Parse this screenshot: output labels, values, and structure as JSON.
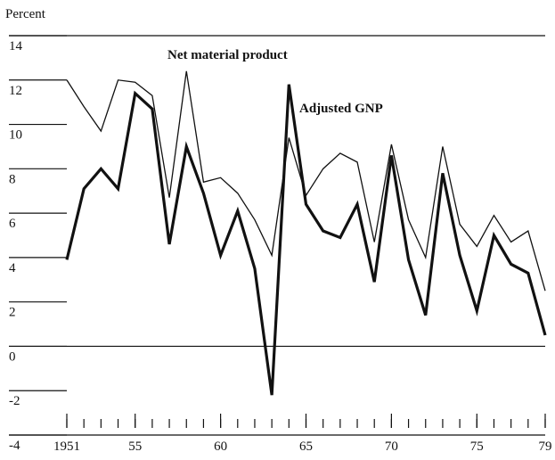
{
  "chart_data": {
    "type": "line",
    "y_label": "Percent",
    "annotations": [
      "Net material product",
      "Adjusted GNP"
    ],
    "x": [
      1951,
      1952,
      1953,
      1954,
      1955,
      1956,
      1957,
      1958,
      1959,
      1960,
      1961,
      1962,
      1963,
      1964,
      1965,
      1966,
      1967,
      1968,
      1969,
      1970,
      1971,
      1972,
      1973,
      1974,
      1975,
      1976,
      1977,
      1978,
      1979
    ],
    "series": [
      {
        "name": "Net material product",
        "color": "#111111",
        "width": 1.3,
        "values": [
          12.0,
          10.8,
          9.7,
          12.0,
          11.9,
          11.3,
          6.7,
          12.4,
          7.4,
          7.6,
          6.9,
          5.7,
          4.1,
          9.4,
          6.8,
          8.0,
          8.7,
          8.3,
          4.7,
          9.1,
          5.7,
          4.0,
          9.0,
          5.5,
          4.5,
          5.9,
          4.7,
          5.2,
          2.5
        ]
      },
      {
        "name": "Adjusted GNP",
        "color": "#111111",
        "width": 3.2,
        "values": [
          3.9,
          7.1,
          8.0,
          7.1,
          11.4,
          10.7,
          4.6,
          9.0,
          6.9,
          4.1,
          6.1,
          3.5,
          -2.2,
          11.8,
          6.4,
          5.2,
          4.9,
          6.4,
          2.9,
          8.6,
          3.9,
          1.4,
          7.8,
          4.1,
          1.6,
          5.0,
          3.7,
          3.3,
          0.5
        ]
      }
    ],
    "xlim": [
      1951,
      1979
    ],
    "xticks": [
      1951,
      {
        "value": 1955,
        "label": "55"
      },
      {
        "value": 1960,
        "label": "60"
      },
      {
        "value": 1965,
        "label": "65"
      },
      {
        "value": 1970,
        "label": "70"
      },
      {
        "value": 1975,
        "label": "75"
      },
      {
        "value": 1979,
        "label": "79"
      }
    ],
    "ylim": [
      -4,
      14
    ],
    "yticks": [
      -4,
      -2,
      0,
      2,
      4,
      6,
      8,
      10,
      12,
      14
    ],
    "zero_line": true
  }
}
